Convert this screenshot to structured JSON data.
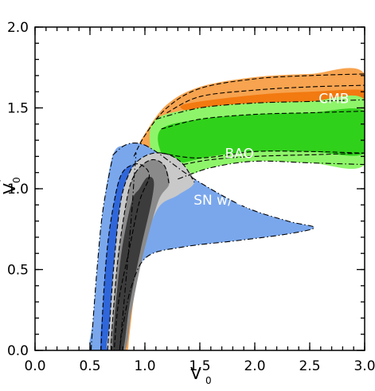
{
  "chart_data": {
    "type": "contour",
    "xlabel": "V",
    "xlabel_sub": "0",
    "ylabel": "V",
    "ylabel_sub": "0",
    "ylabel_prime": "′",
    "xlim": [
      0.0,
      3.0
    ],
    "ylim": [
      0.0,
      2.0
    ],
    "x_ticks": [
      "0.0",
      "0.5",
      "1.0",
      "1.5",
      "2.0",
      "2.5",
      "3.0"
    ],
    "y_ticks": [
      "0.0",
      "0.5",
      "1.0",
      "1.5",
      "2.0"
    ],
    "grid": false,
    "colors": {
      "cmb": "#f7a34f",
      "cmb_inner": "#f27a10",
      "bao": "#8ef56a",
      "bao_inner": "#30d11b",
      "sn": "#7aa7ec",
      "sn_inner": "#2f66d9",
      "combined_outer": "#c9c9c9",
      "combined_mid": "#8a8a8a",
      "combined_inner": "#3c3c3c"
    },
    "annotations": [
      {
        "key": "cmb",
        "text": "CMB",
        "x": 2.72,
        "y": 1.56
      },
      {
        "key": "bao",
        "text": "BAO",
        "x": 1.86,
        "y": 1.22
      },
      {
        "key": "sn",
        "text": "SN w/ sys",
        "x": 1.74,
        "y": 0.93
      }
    ],
    "regions": [
      {
        "name": "CMB 95%",
        "color_key": "cmb",
        "points": [
          [
            0.92,
            1.22
          ],
          [
            1.0,
            1.34
          ],
          [
            1.2,
            1.52
          ],
          [
            1.5,
            1.63
          ],
          [
            2.0,
            1.69
          ],
          [
            2.5,
            1.71
          ],
          [
            3.0,
            1.71
          ],
          [
            3.0,
            1.22
          ],
          [
            2.5,
            1.21
          ],
          [
            2.0,
            1.2
          ],
          [
            1.6,
            1.18
          ],
          [
            1.35,
            1.15
          ],
          [
            1.15,
            0.92
          ],
          [
            1.02,
            0.7
          ],
          [
            0.92,
            0.42
          ],
          [
            0.86,
            0.1
          ],
          [
            0.84,
            0.0
          ],
          [
            0.77,
            0.0
          ],
          [
            0.79,
            0.15
          ],
          [
            0.83,
            0.45
          ],
          [
            0.88,
            0.85
          ],
          [
            0.9,
            1.05
          ]
        ]
      },
      {
        "name": "CMB 68%",
        "color_key": "cmb_inner",
        "points": [
          [
            1.35,
            1.52
          ],
          [
            2.0,
            1.58
          ],
          [
            2.5,
            1.6
          ],
          [
            3.0,
            1.61
          ],
          [
            3.0,
            1.54
          ],
          [
            2.5,
            1.53
          ],
          [
            2.0,
            1.51
          ],
          [
            1.5,
            1.47
          ]
        ]
      },
      {
        "name": "BAO 95%",
        "color_key": "bao",
        "points": [
          [
            1.1,
            1.43
          ],
          [
            1.5,
            1.5
          ],
          [
            2.0,
            1.53
          ],
          [
            2.5,
            1.54
          ],
          [
            3.0,
            1.55
          ],
          [
            3.0,
            1.15
          ],
          [
            2.5,
            1.16
          ],
          [
            2.0,
            1.17
          ],
          [
            1.6,
            1.13
          ],
          [
            1.3,
            1.06
          ],
          [
            1.15,
            1.1
          ],
          [
            1.05,
            1.25
          ]
        ]
      },
      {
        "name": "BAO 68%",
        "color_key": "bao_inner",
        "points": [
          [
            1.15,
            1.37
          ],
          [
            1.5,
            1.43
          ],
          [
            2.0,
            1.46
          ],
          [
            2.5,
            1.47
          ],
          [
            3.0,
            1.48
          ],
          [
            3.0,
            1.22
          ],
          [
            2.5,
            1.23
          ],
          [
            2.0,
            1.23
          ],
          [
            1.6,
            1.2
          ],
          [
            1.3,
            1.16
          ],
          [
            1.15,
            1.22
          ]
        ]
      },
      {
        "name": "SN 95%",
        "color_key": "sn",
        "points": [
          [
            0.71,
            1.21
          ],
          [
            0.82,
            1.27
          ],
          [
            0.95,
            1.28
          ],
          [
            1.1,
            1.23
          ],
          [
            1.45,
            1.06
          ],
          [
            1.9,
            0.89
          ],
          [
            2.3,
            0.8
          ],
          [
            2.54,
            0.76
          ],
          [
            2.3,
            0.72
          ],
          [
            1.85,
            0.68
          ],
          [
            1.35,
            0.64
          ],
          [
            1.02,
            0.58
          ],
          [
            0.88,
            0.4
          ],
          [
            0.8,
            0.15
          ],
          [
            0.77,
            0.0
          ],
          [
            0.51,
            0.0
          ],
          [
            0.53,
            0.2
          ],
          [
            0.57,
            0.55
          ],
          [
            0.62,
            0.88
          ]
        ]
      },
      {
        "name": "SN 68%",
        "color_key": "sn_inner",
        "points": [
          [
            0.78,
            1.08
          ],
          [
            0.86,
            1.14
          ],
          [
            0.96,
            1.15
          ],
          [
            1.04,
            1.08
          ],
          [
            0.95,
            0.92
          ],
          [
            0.85,
            0.6
          ],
          [
            0.76,
            0.3
          ],
          [
            0.72,
            0.0
          ],
          [
            0.6,
            0.0
          ],
          [
            0.62,
            0.3
          ],
          [
            0.66,
            0.65
          ],
          [
            0.72,
            0.92
          ]
        ]
      },
      {
        "name": "Combined 99%",
        "color_key": "combined_outer",
        "points": [
          [
            0.86,
            1.1
          ],
          [
            0.95,
            1.18
          ],
          [
            1.08,
            1.22
          ],
          [
            1.22,
            1.21
          ],
          [
            1.35,
            1.15
          ],
          [
            1.45,
            1.04
          ],
          [
            1.3,
            0.96
          ],
          [
            1.12,
            0.88
          ],
          [
            0.98,
            0.62
          ],
          [
            0.88,
            0.3
          ],
          [
            0.83,
            0.1
          ],
          [
            0.8,
            0.0
          ],
          [
            0.66,
            0.0
          ],
          [
            0.68,
            0.18
          ],
          [
            0.72,
            0.55
          ],
          [
            0.78,
            0.92
          ]
        ]
      },
      {
        "name": "Combined 95%",
        "color_key": "combined_mid",
        "points": [
          [
            0.9,
            1.08
          ],
          [
            0.98,
            1.15
          ],
          [
            1.08,
            1.18
          ],
          [
            1.18,
            1.14
          ],
          [
            1.22,
            1.03
          ],
          [
            1.12,
            0.92
          ],
          [
            0.98,
            0.58
          ],
          [
            0.88,
            0.25
          ],
          [
            0.82,
            0.0
          ],
          [
            0.69,
            0.0
          ],
          [
            0.71,
            0.22
          ],
          [
            0.76,
            0.6
          ],
          [
            0.84,
            0.95
          ]
        ]
      },
      {
        "name": "Combined 68%",
        "color_key": "combined_inner",
        "points": [
          [
            0.95,
            1.0
          ],
          [
            1.02,
            1.07
          ],
          [
            1.08,
            1.05
          ],
          [
            1.06,
            0.92
          ],
          [
            0.96,
            0.62
          ],
          [
            0.86,
            0.28
          ],
          [
            0.8,
            0.0
          ],
          [
            0.71,
            0.0
          ],
          [
            0.73,
            0.25
          ],
          [
            0.79,
            0.62
          ],
          [
            0.88,
            0.92
          ]
        ]
      }
    ],
    "dashed_contours": [
      {
        "style": "dash",
        "points": [
          [
            0.9,
            1.2
          ],
          [
            1.0,
            1.33
          ],
          [
            1.2,
            1.5
          ],
          [
            1.5,
            1.62
          ],
          [
            2.0,
            1.68
          ],
          [
            2.5,
            1.7
          ],
          [
            3.0,
            1.71
          ]
        ]
      },
      {
        "style": "dash",
        "points": [
          [
            1.35,
            1.15
          ],
          [
            1.6,
            1.18
          ],
          [
            2.0,
            1.2
          ],
          [
            2.5,
            1.21
          ],
          [
            3.0,
            1.22
          ]
        ]
      },
      {
        "style": "dash",
        "points": [
          [
            1.2,
            1.47
          ],
          [
            1.5,
            1.57
          ],
          [
            2.0,
            1.61
          ],
          [
            2.5,
            1.63
          ],
          [
            3.0,
            1.64
          ]
        ]
      },
      {
        "style": "dashdot",
        "points": [
          [
            1.1,
            1.43
          ],
          [
            1.5,
            1.5
          ],
          [
            2.0,
            1.53
          ],
          [
            2.5,
            1.54
          ],
          [
            3.0,
            1.55
          ]
        ]
      },
      {
        "style": "dashdot",
        "points": [
          [
            1.3,
            1.06
          ],
          [
            1.6,
            1.13
          ],
          [
            2.0,
            1.17
          ],
          [
            2.5,
            1.16
          ],
          [
            3.0,
            1.15
          ]
        ]
      },
      {
        "style": "dash",
        "points": [
          [
            1.15,
            1.37
          ],
          [
            1.5,
            1.43
          ],
          [
            2.0,
            1.46
          ],
          [
            2.5,
            1.47
          ],
          [
            3.0,
            1.48
          ]
        ]
      },
      {
        "style": "dash",
        "points": [
          [
            1.15,
            1.22
          ],
          [
            1.5,
            1.19
          ],
          [
            2.0,
            1.23
          ],
          [
            2.5,
            1.23
          ],
          [
            3.0,
            1.22
          ]
        ]
      },
      {
        "style": "dashdot",
        "points": [
          [
            0.71,
            1.21
          ],
          [
            0.82,
            1.27
          ],
          [
            0.95,
            1.28
          ],
          [
            1.1,
            1.23
          ],
          [
            1.45,
            1.06
          ],
          [
            1.9,
            0.89
          ],
          [
            2.3,
            0.8
          ],
          [
            2.54,
            0.76
          ],
          [
            2.3,
            0.72
          ],
          [
            1.85,
            0.68
          ],
          [
            1.35,
            0.64
          ],
          [
            1.02,
            0.58
          ],
          [
            0.88,
            0.4
          ],
          [
            0.8,
            0.15
          ],
          [
            0.77,
            0.0
          ]
        ]
      },
      {
        "style": "dashdot",
        "points": [
          [
            0.51,
            0.0
          ],
          [
            0.53,
            0.2
          ],
          [
            0.57,
            0.55
          ],
          [
            0.62,
            0.88
          ],
          [
            0.71,
            1.21
          ]
        ]
      },
      {
        "style": "dash",
        "points": [
          [
            0.6,
            0.0
          ],
          [
            0.62,
            0.3
          ],
          [
            0.66,
            0.65
          ],
          [
            0.72,
            0.92
          ],
          [
            0.78,
            1.08
          ],
          [
            0.86,
            1.14
          ],
          [
            0.96,
            1.15
          ],
          [
            1.04,
            1.08
          ],
          [
            0.95,
            0.92
          ],
          [
            0.85,
            0.6
          ],
          [
            0.76,
            0.3
          ],
          [
            0.72,
            0.0
          ]
        ]
      },
      {
        "style": "dash",
        "points": [
          [
            0.66,
            0.0
          ],
          [
            0.68,
            0.18
          ],
          [
            0.72,
            0.55
          ],
          [
            0.78,
            0.92
          ],
          [
            0.86,
            1.1
          ],
          [
            0.95,
            1.18
          ],
          [
            1.08,
            1.22
          ],
          [
            1.22,
            1.21
          ],
          [
            1.35,
            1.15
          ],
          [
            1.45,
            1.04
          ]
        ]
      },
      {
        "style": "dash",
        "points": [
          [
            0.69,
            0.0
          ],
          [
            0.71,
            0.22
          ],
          [
            0.76,
            0.6
          ],
          [
            0.84,
            0.95
          ],
          [
            0.9,
            1.08
          ],
          [
            0.98,
            1.15
          ],
          [
            1.08,
            1.18
          ],
          [
            1.18,
            1.14
          ],
          [
            1.22,
            1.03
          ]
        ]
      },
      {
        "style": "dashdot",
        "points": [
          [
            0.77,
            0.0
          ],
          [
            0.79,
            0.15
          ],
          [
            0.83,
            0.45
          ],
          [
            0.88,
            0.85
          ],
          [
            0.9,
            1.05
          ],
          [
            0.92,
            1.22
          ]
        ]
      }
    ]
  }
}
